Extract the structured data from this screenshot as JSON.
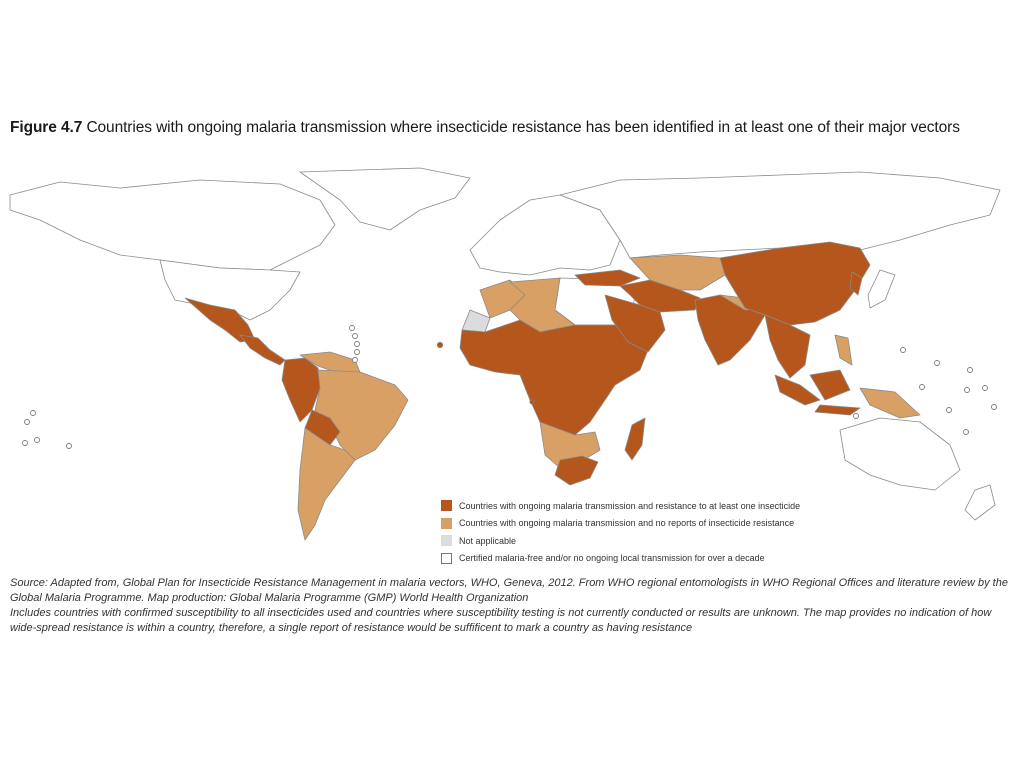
{
  "figure": {
    "label": "Figure 4.7",
    "title": "Countries with ongoing malaria transmission where insecticide resistance has been identified in at least one of their major vectors"
  },
  "colors": {
    "resistance": "#b5561c",
    "no_resistance": "#d9a066",
    "not_applicable": "#dcdcdc",
    "free": "#ffffff",
    "border": "#8a8a8a"
  },
  "legend": [
    {
      "key": "resistance",
      "label": "Countries with ongoing malaria transmission and resistance to at least one insecticide"
    },
    {
      "key": "no_resistance",
      "label": "Countries with ongoing malaria transmission and no reports of insecticide resistance"
    },
    {
      "key": "not_applicable",
      "label": "Not applicable"
    },
    {
      "key": "free",
      "label": "Certified malaria-free and/or no ongoing local transmission for over a decade"
    }
  ],
  "source": {
    "line1": "Source: Adapted from, Global Plan for Insecticide Resistance Management in malaria vectors, WHO, Geneva, 2012. From WHO regional entomologists in WHO Regional Offices and literature review by the Global Malaria Programme. Map production: Global Malaria Programme (GMP) World Health Organization",
    "line2": "Includes countries with confirmed susceptibility to all insecticides used and countries where susceptibility testing is not currently conducted or results are unknown. The map provides no indication of how wide-spread resistance is within a country, therefore, a single report of resistance would be suffificent to mark a country as having resistance"
  },
  "map_regions": [
    {
      "name": "canada",
      "status": "free"
    },
    {
      "name": "united-states",
      "status": "free"
    },
    {
      "name": "greenland",
      "status": "free"
    },
    {
      "name": "mexico",
      "status": "resistance"
    },
    {
      "name": "central-america",
      "status": "resistance"
    },
    {
      "name": "colombia-peru",
      "status": "resistance"
    },
    {
      "name": "venezuela-guianas",
      "status": "no_resistance"
    },
    {
      "name": "brazil",
      "status": "no_resistance"
    },
    {
      "name": "bolivia",
      "status": "resistance"
    },
    {
      "name": "southern-cone",
      "status": "no_resistance"
    },
    {
      "name": "europe",
      "status": "free"
    },
    {
      "name": "russia",
      "status": "free"
    },
    {
      "name": "north-africa",
      "status": "free"
    },
    {
      "name": "morocco",
      "status": "no_resistance"
    },
    {
      "name": "algeria",
      "status": "no_resistance"
    },
    {
      "name": "western-sahara",
      "status": "not_applicable"
    },
    {
      "name": "sub-saharan-africa",
      "status": "resistance"
    },
    {
      "name": "southern-africa",
      "status": "no_resistance"
    },
    {
      "name": "south-africa",
      "status": "resistance"
    },
    {
      "name": "madagascar",
      "status": "resistance"
    },
    {
      "name": "turkey",
      "status": "resistance"
    },
    {
      "name": "arabia",
      "status": "resistance"
    },
    {
      "name": "middle-east",
      "status": "resistance"
    },
    {
      "name": "central-asia",
      "status": "no_resistance"
    },
    {
      "name": "china",
      "status": "resistance"
    },
    {
      "name": "south-asia",
      "status": "resistance"
    },
    {
      "name": "nepal-bhutan",
      "status": "no_resistance"
    },
    {
      "name": "southeast-asia",
      "status": "resistance"
    },
    {
      "name": "korea",
      "status": "resistance"
    },
    {
      "name": "japan",
      "status": "free"
    },
    {
      "name": "philippines",
      "status": "no_resistance"
    },
    {
      "name": "indonesia",
      "status": "resistance"
    },
    {
      "name": "papua",
      "status": "no_resistance"
    },
    {
      "name": "australia",
      "status": "free"
    },
    {
      "name": "new-zealand",
      "status": "free"
    }
  ]
}
